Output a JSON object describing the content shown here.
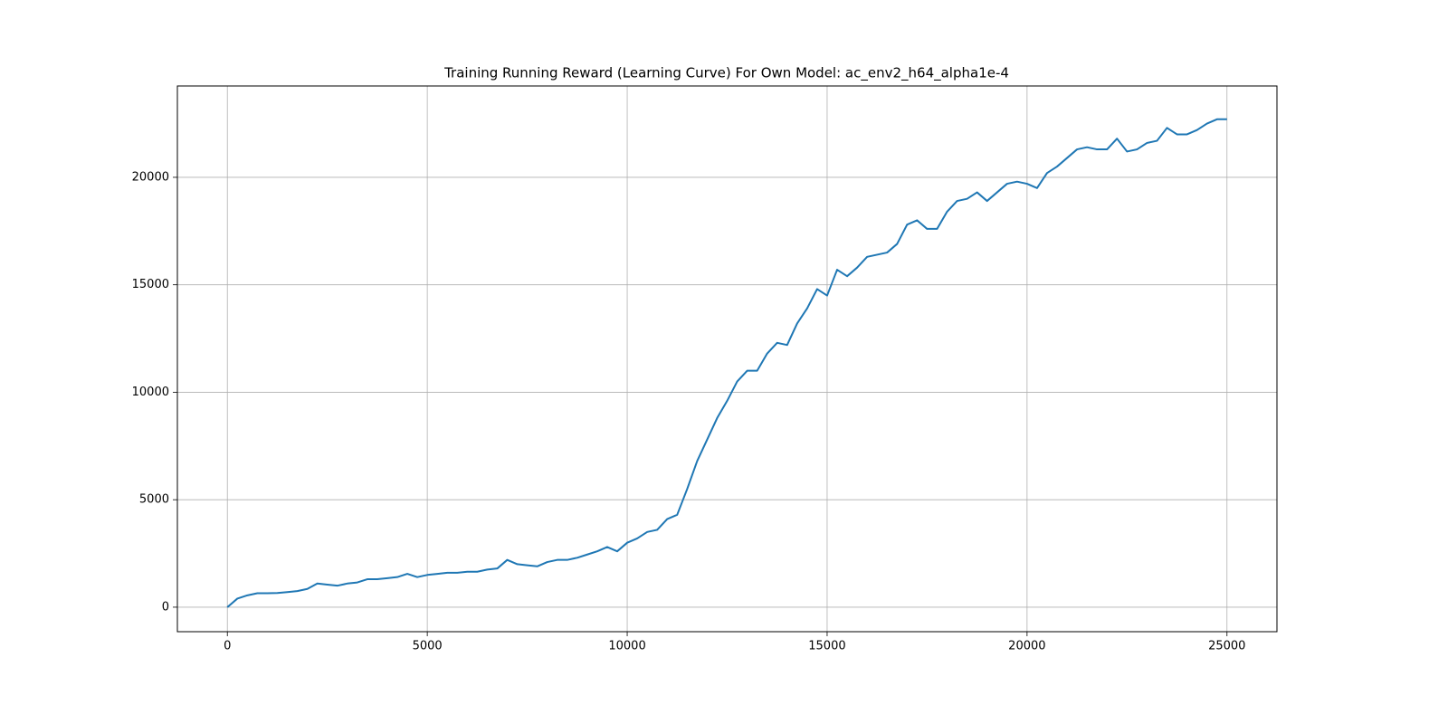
{
  "chart_data": {
    "type": "line",
    "title": "Training Running Reward (Learning Curve) For Own Model: ac_env2_h64_alpha1e-4",
    "x": [
      0,
      250,
      500,
      750,
      1000,
      1250,
      1500,
      1750,
      2000,
      2250,
      2500,
      2750,
      3000,
      3250,
      3500,
      3750,
      4000,
      4250,
      4500,
      4750,
      5000,
      5250,
      5500,
      5750,
      6000,
      6250,
      6500,
      6750,
      7000,
      7250,
      7500,
      7750,
      8000,
      8250,
      8500,
      8750,
      9000,
      9250,
      9500,
      9750,
      10000,
      10250,
      10500,
      10750,
      11000,
      11250,
      11500,
      11750,
      12000,
      12250,
      12500,
      12750,
      13000,
      13250,
      13500,
      13750,
      14000,
      14250,
      14500,
      14750,
      15000,
      15250,
      15500,
      15750,
      16000,
      16250,
      16500,
      16750,
      17000,
      17250,
      17500,
      17750,
      18000,
      18250,
      18500,
      18750,
      19000,
      19250,
      19500,
      19750,
      20000,
      20250,
      20500,
      20750,
      21000,
      21250,
      21500,
      21750,
      22000,
      22250,
      22500,
      22750,
      23000,
      23250,
      23500,
      23750,
      24000,
      24250,
      24500,
      24750,
      25000
    ],
    "values": [
      0,
      400,
      550,
      650,
      650,
      660,
      700,
      750,
      850,
      1100,
      1050,
      1000,
      1100,
      1150,
      1300,
      1300,
      1350,
      1400,
      1550,
      1400,
      1500,
      1550,
      1600,
      1600,
      1650,
      1650,
      1750,
      1800,
      2200,
      2000,
      1950,
      1900,
      2100,
      2200,
      2200,
      2300,
      2450,
      2600,
      2800,
      2600,
      3000,
      3200,
      3500,
      3600,
      4100,
      4300,
      5500,
      6800,
      7800,
      8800,
      9600,
      10500,
      11000,
      11000,
      11800,
      12300,
      12200,
      13200,
      13900,
      14800,
      14500,
      15700,
      15400,
      15800,
      16300,
      16400,
      16500,
      16900,
      17800,
      18000,
      17600,
      17600,
      18400,
      18900,
      19000,
      19300,
      18900,
      19300,
      19700,
      19800,
      19700,
      19500,
      20200,
      20500,
      20900,
      21300,
      21400,
      21300,
      21300,
      21800,
      21200,
      21300,
      21600,
      21700,
      22300,
      22000,
      22000,
      22200,
      22500,
      22700,
      22700
    ],
    "color": "#1f77b4",
    "xlim": [
      -1250,
      26250
    ],
    "xticks": [
      0,
      5000,
      10000,
      15000,
      20000,
      25000
    ],
    "ylim": [
      -1140,
      24250
    ],
    "yticks": [
      0,
      5000,
      10000,
      15000,
      20000
    ],
    "grid": true
  }
}
